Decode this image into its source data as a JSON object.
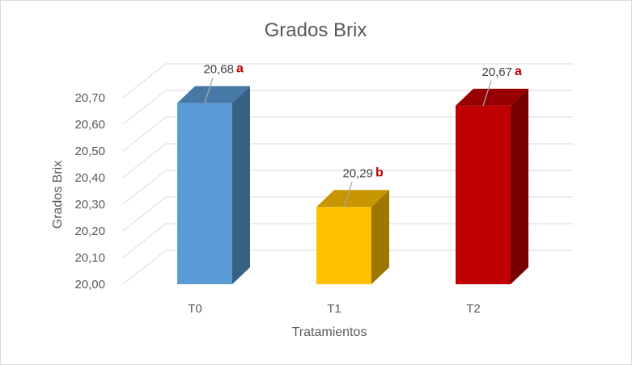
{
  "chart_data": {
    "type": "bar",
    "title": "Grados Brix",
    "xlabel": "Tratamientos",
    "ylabel": "Grados Brix",
    "ylim": [
      20.0,
      20.7
    ],
    "yticks": [
      "20,00",
      "20,10",
      "20,20",
      "20,30",
      "20,40",
      "20,50",
      "20,60",
      "20,70"
    ],
    "categories": [
      "T0",
      "T1",
      "T2"
    ],
    "values": [
      20.68,
      20.29,
      20.67
    ],
    "value_labels": [
      "20,68",
      "20,29",
      "20,67"
    ],
    "significance_letters": [
      "a",
      "b",
      "a"
    ],
    "grid": true,
    "style": "3d-column",
    "colors": [
      "#5b9bd5",
      "#ffc000",
      "#c00000"
    ],
    "letter_color": "#c00000"
  }
}
